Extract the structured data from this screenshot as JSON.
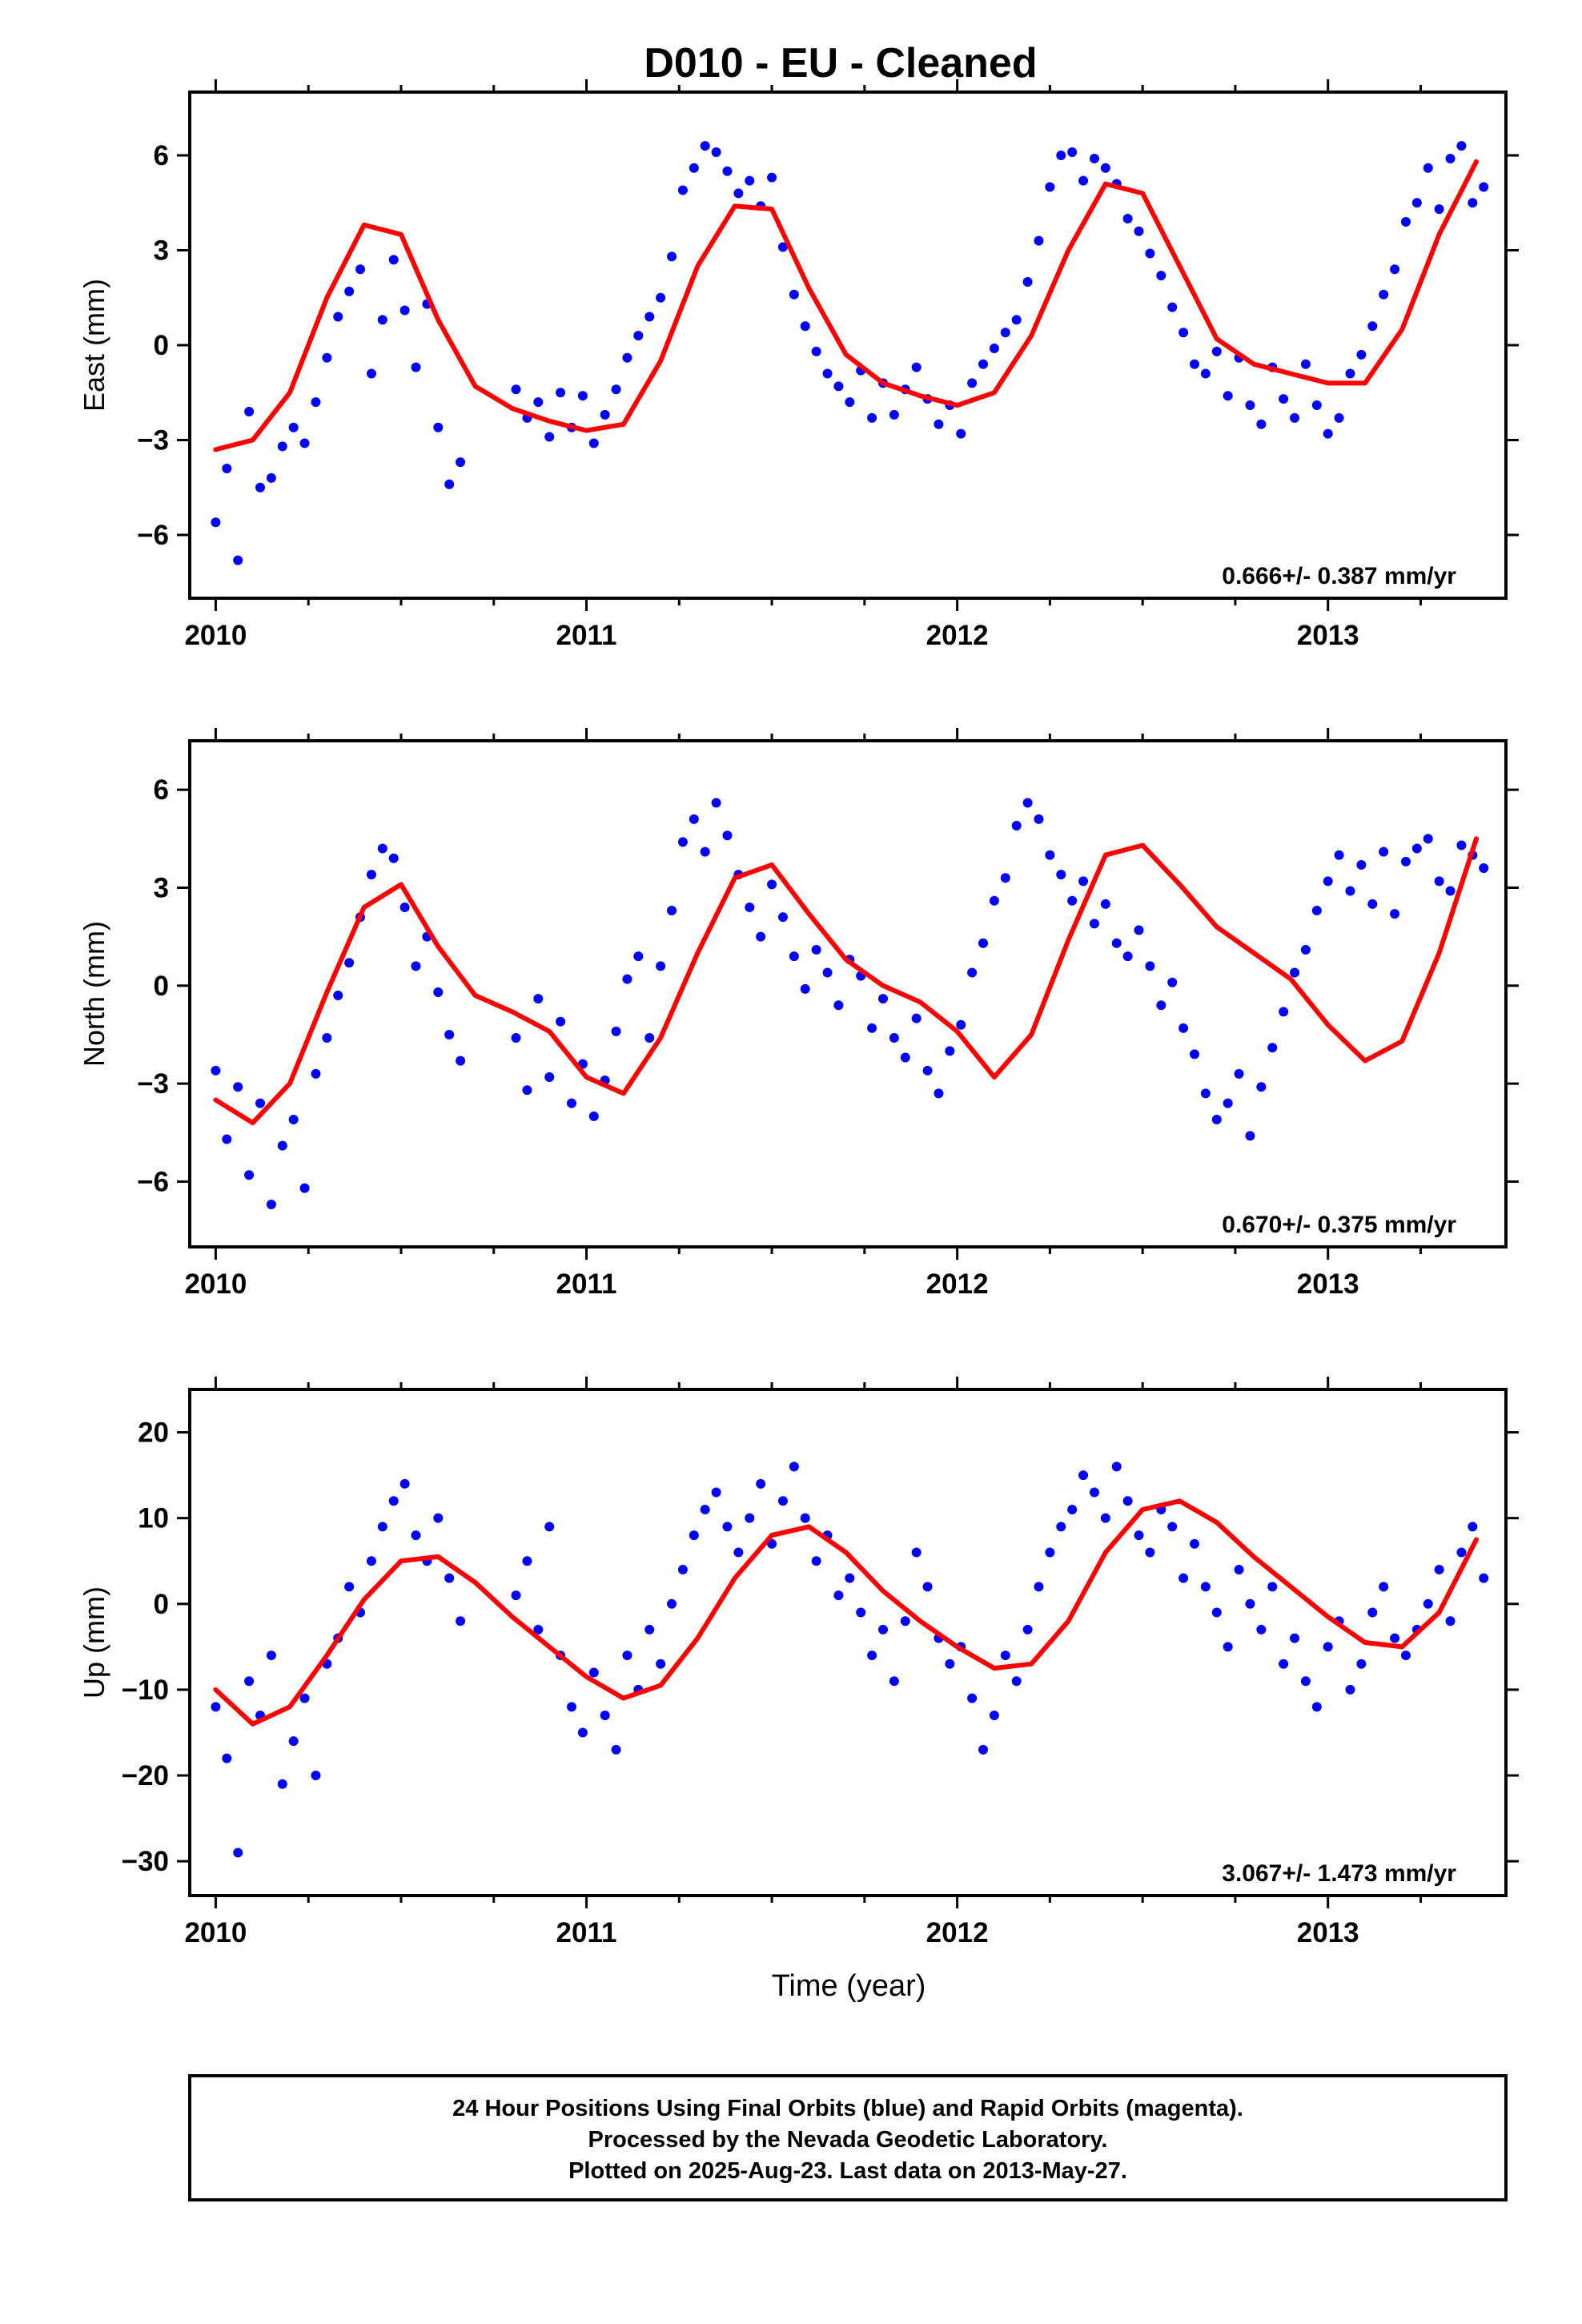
{
  "page": {
    "footer_lines": [
      "24 Hour Positions Using Final Orbits (blue) and Rapid Orbits (magenta).",
      "Processed by the Nevada Geodetic Laboratory.",
      "Plotted on 2025-Aug-23. Last data on 2013-May-27."
    ]
  },
  "chart_data": [
    {
      "type": "scatter",
      "title": "D010  - EU - Cleaned",
      "ylabel": "East (mm)",
      "xlabel": "",
      "xlim": [
        2009.93,
        2013.48
      ],
      "ylim": [
        -8,
        8
      ],
      "x_ticks": [
        2010,
        2011,
        2012,
        2013
      ],
      "y_ticks": [
        -6,
        -3,
        0,
        3,
        6
      ],
      "rate_text": "0.666+/- 0.387 mm/yr",
      "colors": {
        "points": "#0000ff",
        "model": "#ff0000"
      },
      "model_curve": {
        "x": [
          2010.0,
          2010.1,
          2010.2,
          2010.3,
          2010.4,
          2010.5,
          2010.6,
          2010.7,
          2010.8,
          2010.9,
          2011.0,
          2011.1,
          2011.2,
          2011.3,
          2011.4,
          2011.5,
          2011.6,
          2011.7,
          2011.8,
          2011.9,
          2012.0,
          2012.1,
          2012.2,
          2012.3,
          2012.4,
          2012.5,
          2012.6,
          2012.7,
          2012.8,
          2012.9,
          2013.0,
          2013.1,
          2013.2,
          2013.3,
          2013.4
        ],
        "y": [
          -3.3,
          -3.0,
          -1.5,
          1.5,
          3.8,
          3.5,
          0.8,
          -1.3,
          -2.0,
          -2.4,
          -2.7,
          -2.5,
          -0.5,
          2.5,
          4.4,
          4.3,
          1.8,
          -0.3,
          -1.2,
          -1.6,
          -1.9,
          -1.5,
          0.3,
          3.0,
          5.1,
          4.8,
          2.5,
          0.2,
          -0.6,
          -0.9,
          -1.2,
          -1.2,
          0.5,
          3.5,
          5.8
        ]
      },
      "series": [
        {
          "x": [
            2010.0,
            2010.03,
            2010.06,
            2010.09,
            2010.12,
            2010.15,
            2010.18,
            2010.21,
            2010.24,
            2010.27,
            2010.3,
            2010.33,
            2010.36,
            2010.39,
            2010.42,
            2010.45,
            2010.48,
            2010.51,
            2010.54,
            2010.57,
            2010.6,
            2010.63,
            2010.66
          ],
          "y": [
            -5.6,
            -3.9,
            -6.8,
            -2.1,
            -4.5,
            -4.2,
            -3.2,
            -2.6,
            -3.1,
            -1.8,
            -0.4,
            0.9,
            1.7,
            2.4,
            -0.9,
            0.8,
            2.7,
            1.1,
            -0.7,
            1.3,
            -2.6,
            -4.4,
            -3.7
          ]
        },
        {
          "x": [
            2010.81,
            2010.84,
            2010.87,
            2010.9,
            2010.93,
            2010.96,
            2010.99,
            2011.02,
            2011.05,
            2011.08,
            2011.11,
            2011.14,
            2011.17,
            2011.2,
            2011.23,
            2011.26,
            2011.29,
            2011.32,
            2011.35,
            2011.38,
            2011.41,
            2011.44,
            2011.47,
            2011.5,
            2011.53,
            2011.56,
            2011.59,
            2011.62,
            2011.65,
            2011.68,
            2011.71,
            2011.74,
            2011.77,
            2011.8,
            2011.83,
            2011.86,
            2011.89,
            2011.92,
            2011.95,
            2011.98,
            2012.01,
            2012.04,
            2012.07,
            2012.1,
            2012.13,
            2012.16,
            2012.19,
            2012.22,
            2012.25,
            2012.28,
            2012.31,
            2012.34,
            2012.37,
            2012.4,
            2012.43,
            2012.46,
            2012.49,
            2012.52,
            2012.55,
            2012.58,
            2012.61,
            2012.64,
            2012.67,
            2012.7,
            2012.73,
            2012.76,
            2012.79,
            2012.82,
            2012.85,
            2012.88,
            2012.91,
            2012.94,
            2012.97,
            2013.0,
            2013.03,
            2013.06,
            2013.09,
            2013.12,
            2013.15,
            2013.18,
            2013.21,
            2013.24,
            2013.27,
            2013.3,
            2013.33,
            2013.36,
            2013.39,
            2013.42
          ],
          "y": [
            -1.4,
            -2.3,
            -1.8,
            -2.9,
            -1.5,
            -2.6,
            -1.6,
            -3.1,
            -2.2,
            -1.4,
            -0.4,
            0.3,
            0.9,
            1.5,
            2.8,
            4.9,
            5.6,
            6.3,
            6.1,
            5.5,
            4.8,
            5.2,
            4.4,
            5.3,
            3.1,
            1.6,
            0.6,
            -0.2,
            -0.9,
            -1.3,
            -1.8,
            -0.8,
            -2.3,
            -1.2,
            -2.2,
            -1.4,
            -0.7,
            -1.7,
            -2.5,
            -1.9,
            -2.8,
            -1.2,
            -0.6,
            -0.1,
            0.4,
            0.8,
            2.0,
            3.3,
            5.0,
            6.0,
            6.1,
            5.2,
            5.9,
            5.6,
            5.1,
            4.0,
            3.6,
            2.9,
            2.2,
            1.2,
            0.4,
            -0.6,
            -0.9,
            -0.2,
            -1.6,
            -0.4,
            -1.9,
            -2.5,
            -0.7,
            -1.7,
            -2.3,
            -0.6,
            -1.9,
            -2.8,
            -2.3,
            -0.9,
            -0.3,
            0.6,
            1.6,
            2.4,
            3.9,
            4.5,
            5.6,
            4.3,
            5.9,
            6.3,
            4.5,
            5.0
          ]
        }
      ]
    },
    {
      "type": "scatter",
      "title": "",
      "ylabel": "North (mm)",
      "xlabel": "",
      "xlim": [
        2009.93,
        2013.48
      ],
      "ylim": [
        -8,
        7.5
      ],
      "x_ticks": [
        2010,
        2011,
        2012,
        2013
      ],
      "y_ticks": [
        -6,
        -3,
        0,
        3,
        6
      ],
      "rate_text": "0.670+/- 0.375 mm/yr",
      "colors": {
        "points": "#0000ff",
        "model": "#ff0000"
      },
      "model_curve": {
        "x": [
          2010.0,
          2010.1,
          2010.2,
          2010.3,
          2010.4,
          2010.5,
          2010.6,
          2010.7,
          2010.8,
          2010.9,
          2011.0,
          2011.1,
          2011.2,
          2011.3,
          2011.4,
          2011.5,
          2011.6,
          2011.7,
          2011.8,
          2011.9,
          2012.0,
          2012.1,
          2012.2,
          2012.3,
          2012.4,
          2012.5,
          2012.6,
          2012.7,
          2012.8,
          2012.9,
          2013.0,
          2013.1,
          2013.2,
          2013.3,
          2013.4
        ],
        "y": [
          -3.5,
          -4.2,
          -3.0,
          -0.2,
          2.4,
          3.1,
          1.2,
          -0.3,
          -0.8,
          -1.4,
          -2.8,
          -3.3,
          -1.6,
          1.0,
          3.3,
          3.7,
          2.2,
          0.8,
          0.0,
          -0.5,
          -1.4,
          -2.8,
          -1.5,
          1.4,
          4.0,
          4.3,
          3.1,
          1.8,
          1.0,
          0.2,
          -1.2,
          -2.3,
          -1.7,
          1.0,
          4.5
        ]
      },
      "series": [
        {
          "x": [
            2010.0,
            2010.03,
            2010.06,
            2010.09,
            2010.12,
            2010.15,
            2010.18,
            2010.21,
            2010.24,
            2010.27,
            2010.3,
            2010.33,
            2010.36,
            2010.39,
            2010.42,
            2010.45,
            2010.48,
            2010.51,
            2010.54,
            2010.57,
            2010.6,
            2010.63,
            2010.66
          ],
          "y": [
            -2.6,
            -4.7,
            -3.1,
            -5.8,
            -3.6,
            -6.7,
            -4.9,
            -4.1,
            -6.2,
            -2.7,
            -1.6,
            -0.3,
            0.7,
            2.1,
            3.4,
            4.2,
            3.9,
            2.4,
            0.6,
            1.5,
            -0.2,
            -1.5,
            -2.3
          ]
        },
        {
          "x": [
            2010.81,
            2010.84,
            2010.87,
            2010.9,
            2010.93,
            2010.96,
            2010.99,
            2011.02,
            2011.05,
            2011.08,
            2011.11,
            2011.14,
            2011.17,
            2011.2,
            2011.23,
            2011.26,
            2011.29,
            2011.32,
            2011.35,
            2011.38,
            2011.41,
            2011.44,
            2011.47,
            2011.5,
            2011.53,
            2011.56,
            2011.59,
            2011.62,
            2011.65,
            2011.68,
            2011.71,
            2011.74,
            2011.77,
            2011.8,
            2011.83,
            2011.86,
            2011.89,
            2011.92,
            2011.95,
            2011.98,
            2012.01,
            2012.04,
            2012.07,
            2012.1,
            2012.13,
            2012.16,
            2012.19,
            2012.22,
            2012.25,
            2012.28,
            2012.31,
            2012.34,
            2012.37,
            2012.4,
            2012.43,
            2012.46,
            2012.49,
            2012.52,
            2012.55,
            2012.58,
            2012.61,
            2012.64,
            2012.67,
            2012.7,
            2012.73,
            2012.76,
            2012.79,
            2012.82,
            2012.85,
            2012.88,
            2012.91,
            2012.94,
            2012.97,
            2013.0,
            2013.03,
            2013.06,
            2013.09,
            2013.12,
            2013.15,
            2013.18,
            2013.21,
            2013.24,
            2013.27,
            2013.3,
            2013.33,
            2013.36,
            2013.39,
            2013.42
          ],
          "y": [
            -1.6,
            -3.2,
            -0.4,
            -2.8,
            -1.1,
            -3.6,
            -2.4,
            -4.0,
            -2.9,
            -1.4,
            0.2,
            0.9,
            -1.6,
            0.6,
            2.3,
            4.4,
            5.1,
            4.1,
            5.6,
            4.6,
            3.4,
            2.4,
            1.5,
            3.1,
            2.1,
            0.9,
            -0.1,
            1.1,
            0.4,
            -0.6,
            0.8,
            0.3,
            -1.3,
            -0.4,
            -1.6,
            -2.2,
            -1.0,
            -2.6,
            -3.3,
            -2.0,
            -1.2,
            0.4,
            1.3,
            2.6,
            3.3,
            4.9,
            5.6,
            5.1,
            4.0,
            3.4,
            2.6,
            3.2,
            1.9,
            2.5,
            1.3,
            0.9,
            1.7,
            0.6,
            -0.6,
            0.1,
            -1.3,
            -2.1,
            -3.3,
            -4.1,
            -3.6,
            -2.7,
            -4.6,
            -3.1,
            -1.9,
            -0.8,
            0.4,
            1.1,
            2.3,
            3.2,
            4.0,
            2.9,
            3.7,
            2.5,
            4.1,
            2.2,
            3.8,
            4.2,
            4.5,
            3.2,
            2.9,
            4.3,
            4.0,
            3.6
          ]
        }
      ]
    },
    {
      "type": "scatter",
      "title": "",
      "ylabel": "Up (mm)",
      "xlabel": "Time (year)",
      "xlim": [
        2009.93,
        2013.48
      ],
      "ylim": [
        -34,
        25
      ],
      "x_ticks": [
        2010,
        2011,
        2012,
        2013
      ],
      "y_ticks": [
        -30,
        -20,
        -10,
        0,
        10,
        20
      ],
      "rate_text": "3.067+/- 1.473 mm/yr",
      "colors": {
        "points": "#0000ff",
        "model": "#ff0000"
      },
      "model_curve": {
        "x": [
          2010.0,
          2010.1,
          2010.2,
          2010.3,
          2010.4,
          2010.5,
          2010.6,
          2010.7,
          2010.8,
          2010.9,
          2011.0,
          2011.1,
          2011.2,
          2011.3,
          2011.4,
          2011.5,
          2011.6,
          2011.7,
          2011.8,
          2011.9,
          2012.0,
          2012.1,
          2012.2,
          2012.3,
          2012.4,
          2012.5,
          2012.6,
          2012.7,
          2012.8,
          2012.9,
          2013.0,
          2013.1,
          2013.2,
          2013.3,
          2013.4
        ],
        "y": [
          -10.0,
          -14.0,
          -12.0,
          -6.0,
          0.5,
          5.0,
          5.5,
          2.5,
          -1.5,
          -5.0,
          -8.5,
          -11.0,
          -9.5,
          -4.0,
          3.0,
          8.0,
          9.0,
          6.0,
          1.5,
          -2.0,
          -5.0,
          -7.5,
          -7.0,
          -2.0,
          6.0,
          11.0,
          12.0,
          9.5,
          5.5,
          2.0,
          -1.5,
          -4.5,
          -5.0,
          -1.0,
          7.5
        ]
      },
      "series": [
        {
          "x": [
            2010.0,
            2010.03,
            2010.06,
            2010.09,
            2010.12,
            2010.15,
            2010.18,
            2010.21,
            2010.24,
            2010.27,
            2010.3,
            2010.33,
            2010.36,
            2010.39,
            2010.42,
            2010.45,
            2010.48,
            2010.51,
            2010.54,
            2010.57,
            2010.6,
            2010.63,
            2010.66
          ],
          "y": [
            -12.0,
            -18.0,
            -29.0,
            -9.0,
            -13.0,
            -6.0,
            -21.0,
            -16.0,
            -11.0,
            -20.0,
            -7.0,
            -4.0,
            2.0,
            -1.0,
            5.0,
            9.0,
            12.0,
            14.0,
            8.0,
            5.0,
            10.0,
            3.0,
            -2.0
          ]
        },
        {
          "x": [
            2010.81,
            2010.84,
            2010.87,
            2010.9,
            2010.93,
            2010.96,
            2010.99,
            2011.02,
            2011.05,
            2011.08,
            2011.11,
            2011.14,
            2011.17,
            2011.2,
            2011.23,
            2011.26,
            2011.29,
            2011.32,
            2011.35,
            2011.38,
            2011.41,
            2011.44,
            2011.47,
            2011.5,
            2011.53,
            2011.56,
            2011.59,
            2011.62,
            2011.65,
            2011.68,
            2011.71,
            2011.74,
            2011.77,
            2011.8,
            2011.83,
            2011.86,
            2011.89,
            2011.92,
            2011.95,
            2011.98,
            2012.01,
            2012.04,
            2012.07,
            2012.1,
            2012.13,
            2012.16,
            2012.19,
            2012.22,
            2012.25,
            2012.28,
            2012.31,
            2012.34,
            2012.37,
            2012.4,
            2012.43,
            2012.46,
            2012.49,
            2012.52,
            2012.55,
            2012.58,
            2012.61,
            2012.64,
            2012.67,
            2012.7,
            2012.73,
            2012.76,
            2012.79,
            2012.82,
            2012.85,
            2012.88,
            2012.91,
            2012.94,
            2012.97,
            2013.0,
            2013.03,
            2013.06,
            2013.09,
            2013.12,
            2013.15,
            2013.18,
            2013.21,
            2013.24,
            2013.27,
            2013.3,
            2013.33,
            2013.36,
            2013.39,
            2013.42
          ],
          "y": [
            1.0,
            5.0,
            -3.0,
            9.0,
            -6.0,
            -12.0,
            -15.0,
            -8.0,
            -13.0,
            -17.0,
            -6.0,
            -10.0,
            -3.0,
            -7.0,
            0.0,
            4.0,
            8.0,
            11.0,
            13.0,
            9.0,
            6.0,
            10.0,
            14.0,
            7.0,
            12.0,
            16.0,
            10.0,
            5.0,
            8.0,
            1.0,
            3.0,
            -1.0,
            -6.0,
            -3.0,
            -9.0,
            -2.0,
            6.0,
            2.0,
            -4.0,
            -7.0,
            -5.0,
            -11.0,
            -17.0,
            -13.0,
            -6.0,
            -9.0,
            -3.0,
            2.0,
            6.0,
            9.0,
            11.0,
            15.0,
            13.0,
            10.0,
            16.0,
            12.0,
            8.0,
            6.0,
            11.0,
            9.0,
            3.0,
            7.0,
            2.0,
            -1.0,
            -5.0,
            4.0,
            0.0,
            -3.0,
            2.0,
            -7.0,
            -4.0,
            -9.0,
            -12.0,
            -5.0,
            -2.0,
            -10.0,
            -7.0,
            -1.0,
            2.0,
            -4.0,
            -6.0,
            -3.0,
            0.0,
            4.0,
            -2.0,
            6.0,
            9.0,
            3.0
          ]
        }
      ]
    }
  ]
}
